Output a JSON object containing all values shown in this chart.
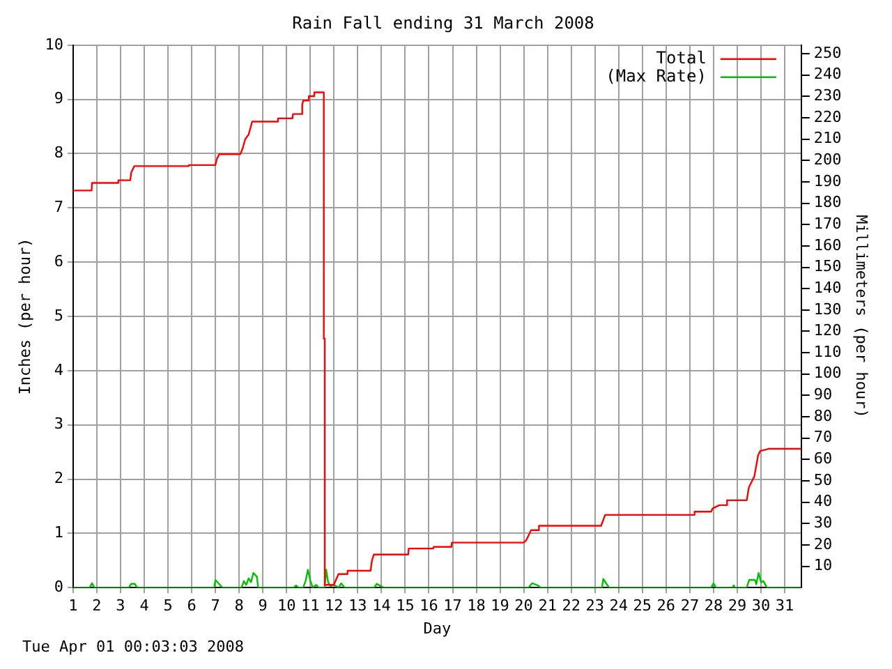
{
  "chart_data": {
    "type": "line",
    "title": "Rain Fall ending 31 March 2008",
    "xlabel": "Day",
    "ylabel": "Inches (per hour)",
    "y2label": "Millimeters (per hour)",
    "annotations": [
      "Tue Apr 01 00:03:03 2008"
    ],
    "xlim": [
      1,
      31.7
    ],
    "xticks": [
      1,
      2,
      3,
      4,
      5,
      6,
      7,
      8,
      9,
      10,
      11,
      12,
      13,
      14,
      15,
      16,
      17,
      18,
      19,
      20,
      21,
      22,
      23,
      24,
      25,
      26,
      27,
      28,
      29,
      30,
      31
    ],
    "ylim": [
      0,
      10
    ],
    "yticks": [
      0,
      1,
      2,
      3,
      4,
      5,
      6,
      7,
      8,
      9,
      10
    ],
    "y2lim": [
      0,
      254
    ],
    "y2ticks": [
      10,
      20,
      30,
      40,
      50,
      60,
      70,
      80,
      90,
      100,
      110,
      120,
      130,
      140,
      150,
      160,
      170,
      180,
      190,
      200,
      210,
      220,
      230,
      240,
      250
    ],
    "grid": true,
    "legend": "top right",
    "marker": "none",
    "line_style": "solid",
    "series": [
      {
        "name": "Total",
        "color": "#ff0000",
        "x": [
          1,
          1.78,
          1.8,
          2.89,
          2.91,
          3.41,
          3.45,
          3.58,
          5.86,
          5.88,
          7.0,
          7.06,
          7.16,
          8.05,
          8.15,
          8.26,
          8.4,
          8.55,
          9.62,
          9.64,
          10.25,
          10.27,
          10.64,
          10.66,
          10.7,
          10.92,
          10.94,
          11.15,
          11.17,
          11.57,
          11.57,
          11.61,
          11.61,
          11.67,
          11.99,
          12.19,
          12.55,
          12.57,
          13.54,
          13.6,
          13.68,
          15.13,
          15.15,
          16.18,
          16.2,
          16.95,
          16.97,
          20.0,
          20.1,
          20.31,
          20.6,
          20.64,
          23.26,
          23.43,
          27.18,
          27.2,
          27.9,
          27.96,
          28.25,
          28.55,
          28.57,
          29.4,
          29.49,
          29.72,
          29.88,
          29.97,
          30.35,
          31.7
        ],
        "values": [
          7.32,
          7.32,
          7.46,
          7.46,
          7.51,
          7.51,
          7.65,
          7.77,
          7.77,
          7.79,
          7.79,
          7.9,
          7.99,
          7.99,
          8.1,
          8.27,
          8.35,
          8.59,
          8.59,
          8.65,
          8.65,
          8.73,
          8.73,
          8.9,
          8.98,
          8.98,
          9.06,
          9.06,
          9.13,
          9.13,
          4.59,
          4.59,
          0.05,
          0.05,
          0.05,
          0.25,
          0.25,
          0.31,
          0.31,
          0.5,
          0.61,
          0.61,
          0.72,
          0.72,
          0.75,
          0.75,
          0.83,
          0.83,
          0.87,
          1.06,
          1.06,
          1.14,
          1.14,
          1.34,
          1.34,
          1.4,
          1.4,
          1.46,
          1.52,
          1.52,
          1.61,
          1.61,
          1.85,
          2.05,
          2.44,
          2.52,
          2.56,
          2.56
        ]
      },
      {
        "name": "(Max Rate)",
        "color": "#00c000",
        "x": [
          1,
          1.7,
          1.8,
          1.9,
          3.35,
          3.45,
          3.6,
          3.7,
          6.95,
          7.0,
          7.3,
          8.1,
          8.2,
          8.3,
          8.4,
          8.5,
          8.6,
          8.75,
          8.8,
          10.3,
          10.4,
          10.5,
          10.7,
          10.8,
          10.9,
          11.0,
          11.1,
          11.25,
          11.35,
          11.6,
          11.67,
          11.75,
          11.85,
          12.0,
          12.2,
          12.3,
          12.45,
          13.7,
          13.8,
          14.0,
          14.1,
          20.2,
          20.35,
          20.6,
          20.7,
          23.3,
          23.35,
          23.5,
          23.6,
          27.9,
          28.0,
          28.1,
          28.8,
          28.85,
          28.9,
          29.4,
          29.5,
          29.75,
          29.8,
          29.9,
          30.0,
          30.1,
          30.25,
          31.7
        ],
        "values": [
          0,
          0,
          0.08,
          0,
          0,
          0.07,
          0.07,
          0,
          0,
          0.14,
          0,
          0,
          0.12,
          0.05,
          0.17,
          0.1,
          0.27,
          0.2,
          0,
          0,
          0.04,
          0,
          0,
          0.12,
          0.33,
          0.13,
          0,
          0.05,
          0,
          0,
          0.33,
          0.1,
          0.03,
          0.05,
          0,
          0.08,
          0,
          0,
          0.07,
          0.02,
          0,
          0,
          0.08,
          0.04,
          0,
          0,
          0.16,
          0.06,
          0,
          0,
          0.08,
          0,
          0,
          0.04,
          0,
          0,
          0.14,
          0.14,
          0.06,
          0.27,
          0.1,
          0.12,
          0,
          0
        ]
      }
    ]
  }
}
